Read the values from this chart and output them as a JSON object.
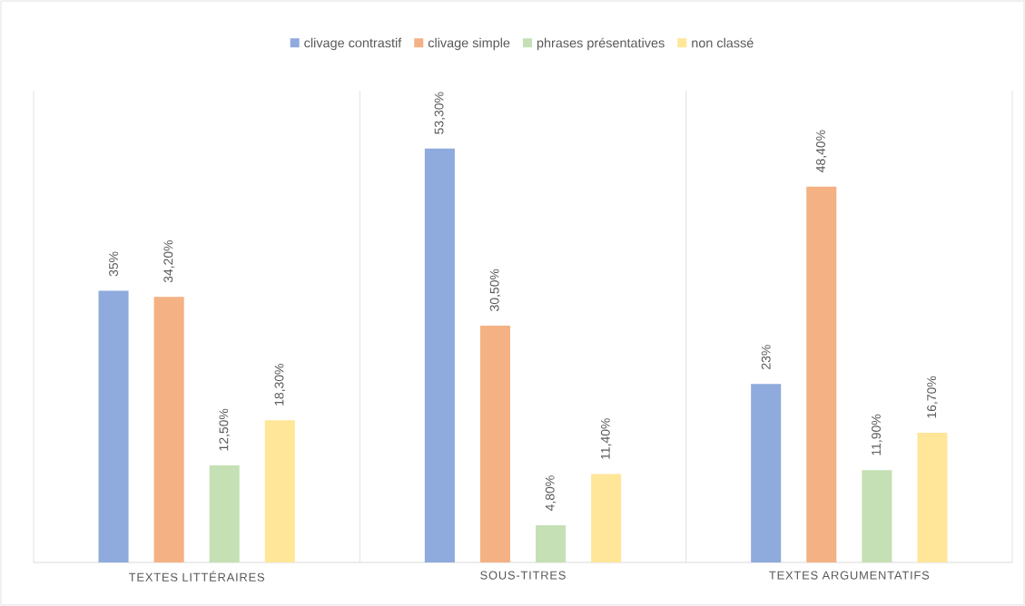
{
  "chart_data": {
    "type": "bar",
    "categories": [
      "TEXTES LITTÉRAIRES",
      "SOUS-TITRES",
      "TEXTES ARGUMENTATIFS"
    ],
    "series": [
      {
        "name": "clivage contrastif",
        "color": "#8faadc",
        "values": [
          35,
          53.3,
          23
        ],
        "value_labels": [
          "35%",
          "53,30%",
          "23%"
        ]
      },
      {
        "name": "clivage simple",
        "color": "#f4b183",
        "values": [
          34.2,
          30.5,
          48.4
        ],
        "value_labels": [
          "34,20%",
          "30,50%",
          "48,40%"
        ]
      },
      {
        "name": "phrases présentatives",
        "color": "#c5e0b4",
        "values": [
          12.5,
          4.8,
          11.9
        ],
        "value_labels": [
          "12,50%",
          "4,80%",
          "11,90%"
        ]
      },
      {
        "name": "non classé",
        "color": "#ffe699",
        "values": [
          18.3,
          11.4,
          16.7
        ],
        "value_labels": [
          "18,30%",
          "11,40%",
          "16,70%"
        ]
      }
    ],
    "legend": "top",
    "grid": "x"
  }
}
